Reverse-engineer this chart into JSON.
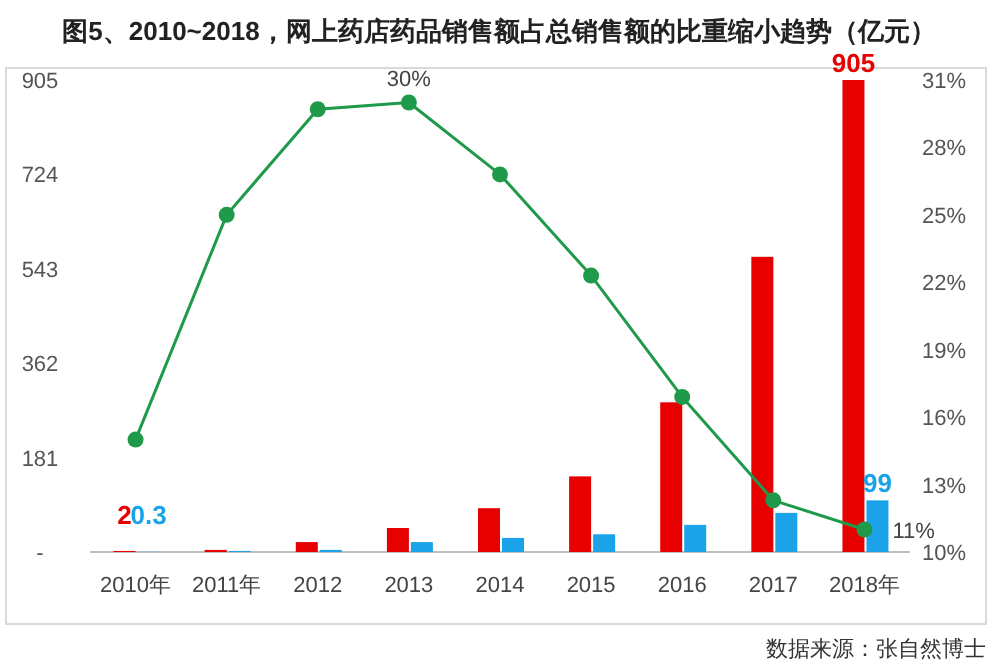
{
  "chart_data": {
    "type": "bar",
    "title": "图5、2010~2018，网上药店药品销售额占总销售额的比重缩小趋势（亿元）",
    "categories": [
      "2010年",
      "2011年",
      "2012",
      "2013",
      "2014",
      "2015",
      "2016",
      "2017",
      "2018年"
    ],
    "series": [
      {
        "color": "#e60000",
        "values": [
          2,
          4,
          19,
          46,
          84,
          145,
          287,
          566,
          905
        ],
        "value_labels": [
          "2",
          null,
          null,
          null,
          null,
          null,
          null,
          null,
          "905"
        ]
      },
      {
        "color": "#1aa3e8",
        "values": [
          0.3,
          2,
          4,
          19,
          27,
          34,
          52,
          75,
          99
        ],
        "value_labels": [
          "0.3",
          null,
          null,
          null,
          null,
          null,
          null,
          null,
          "99"
        ]
      },
      {
        "type": "line",
        "axis": "y2",
        "color": "#1e9a4a",
        "marker": "circle",
        "values": [
          15,
          25,
          29.7,
          30,
          26.8,
          22.3,
          16.9,
          12.3,
          11
        ],
        "value_labels": [
          null,
          null,
          null,
          "30%",
          null,
          null,
          null,
          null,
          "11%"
        ]
      }
    ],
    "ylim": [
      0,
      905
    ],
    "yticks": [
      {
        "value": 0,
        "label": "-"
      },
      181,
      362,
      543,
      724,
      905
    ],
    "y2lim": [
      10,
      31
    ],
    "y2ticks": [
      {
        "value": 10,
        "label": "10%"
      },
      {
        "value": 13,
        "label": "13%"
      },
      {
        "value": 16,
        "label": "16%"
      },
      {
        "value": 19,
        "label": "19%"
      },
      {
        "value": 22,
        "label": "22%"
      },
      {
        "value": 25,
        "label": "25%"
      },
      {
        "value": 28,
        "label": "28%"
      },
      {
        "value": 31,
        "label": "31%"
      }
    ],
    "annotations": [
      "数据来源：张自然博士"
    ],
    "grid": false
  }
}
